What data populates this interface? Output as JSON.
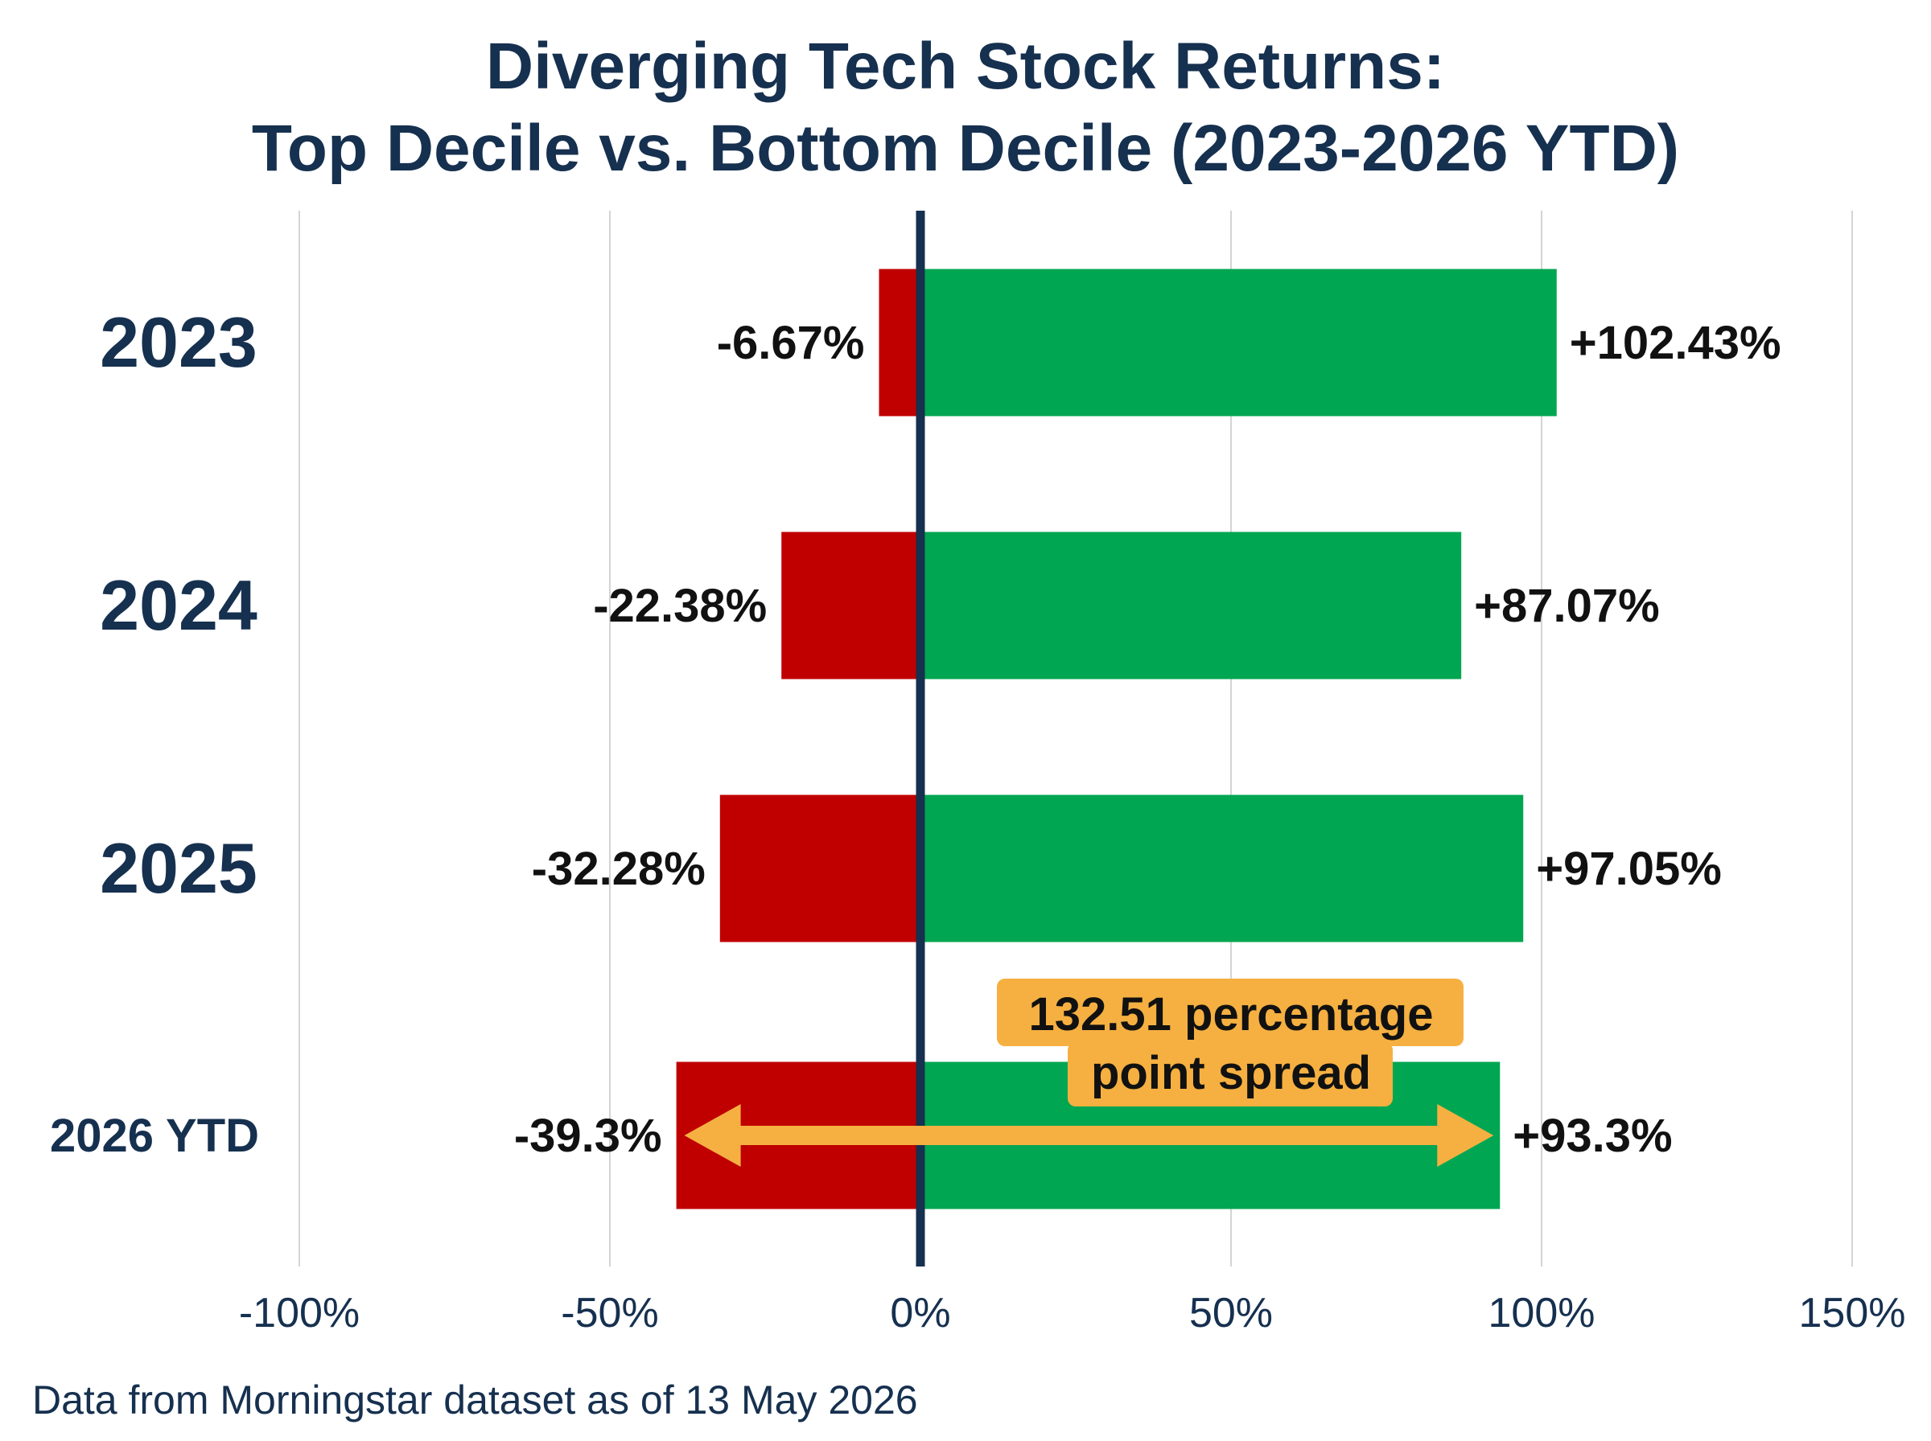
{
  "chart_data": {
    "type": "bar",
    "orientation": "horizontal",
    "layout": "diverging",
    "title_lines": [
      "Diverging Tech Stock Returns:",
      "Top Decile vs. Bottom Decile (2023-2026 YTD)"
    ],
    "categories": [
      "2023",
      "2024",
      "2025",
      "2026 YTD"
    ],
    "series": [
      {
        "values": [
          -6.67,
          -22.38,
          -32.28,
          -39.3
        ],
        "labels": [
          "-6.67%",
          "-22.38%",
          "-32.28%",
          "-39.3%"
        ],
        "color": "#c00000"
      },
      {
        "values": [
          102.43,
          87.07,
          97.05,
          93.3
        ],
        "labels": [
          "+102.43%",
          "+87.07%",
          "+97.05%",
          "+93.3%"
        ],
        "color": "#00a651"
      }
    ],
    "x_ticks": [
      -100,
      -50,
      0,
      50,
      100,
      150
    ],
    "x_tick_labels": [
      "-100%",
      "-50%",
      "0%",
      "50%",
      "100%",
      "150%"
    ],
    "xlim": [
      -100,
      150
    ],
    "grid": "vertical",
    "zero_line_color": "#16304f",
    "annotation": {
      "lines": [
        "132.51 percentage",
        "point spread"
      ],
      "category": "2026 YTD",
      "from": -39.3,
      "to": 93.3,
      "color": "#f5b041"
    },
    "source": "Data from Morningstar dataset as of 13 May 2026"
  }
}
